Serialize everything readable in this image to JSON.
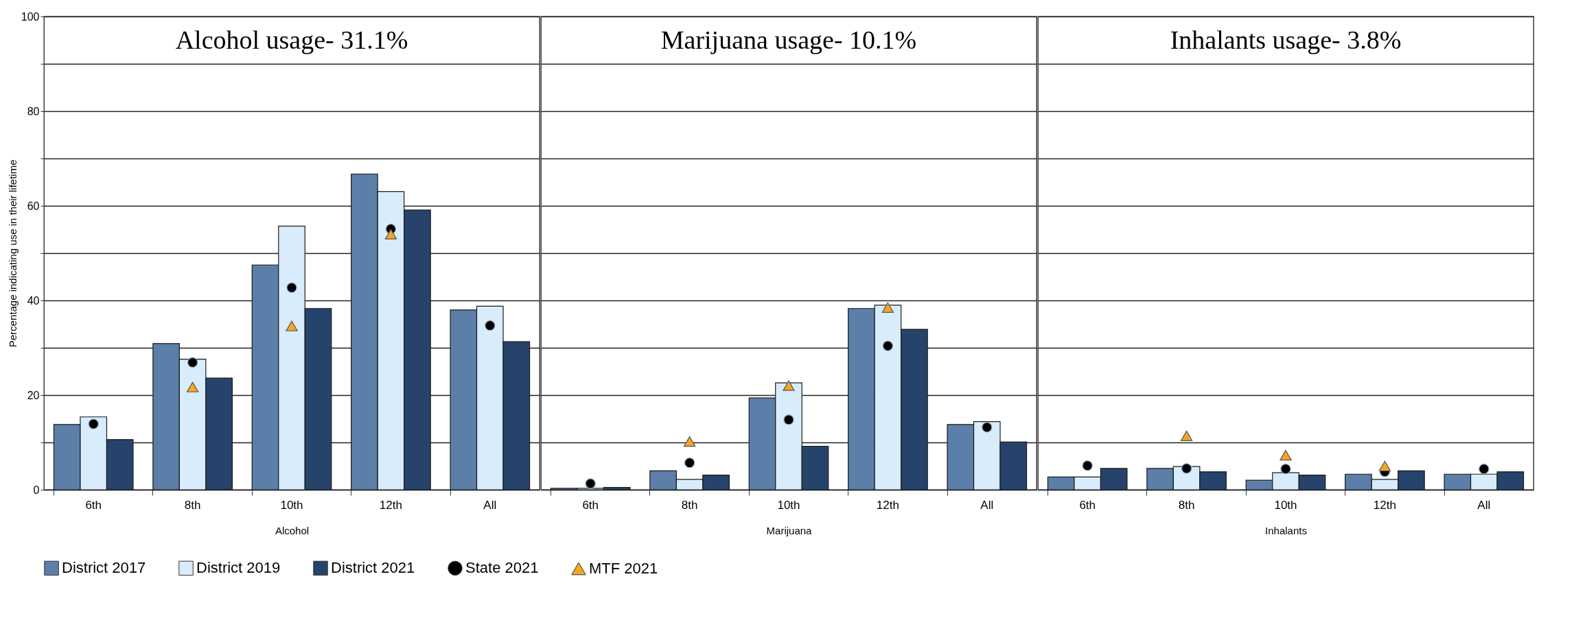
{
  "chart_data": [
    {
      "type": "bar",
      "title": "Alcohol usage- 31.1%",
      "xlabel": "Alcohol",
      "ylabel": "Percentage indicating use in their lifetime",
      "categories": [
        "6th",
        "8th",
        "10th",
        "12th",
        "All"
      ],
      "ylim": [
        0,
        100
      ],
      "yticks": [
        0,
        {
          "value": 10,
          "label": null
        },
        20,
        {
          "value": 30,
          "label": null
        },
        40,
        {
          "value": 50,
          "label": null
        },
        60,
        {
          "value": 70,
          "label": null
        },
        80,
        {
          "value": 90,
          "label": null
        },
        100
      ],
      "grid": "y",
      "legend": "bottom",
      "series": [
        {
          "name": "District 2017",
          "color": "#5b7fa8",
          "values": [
            13.8,
            30.9,
            47.5,
            66.7,
            38.0
          ]
        },
        {
          "name": "District 2019",
          "color": "#d8ecfb",
          "values": [
            15.4,
            27.6,
            55.7,
            63.0,
            38.8
          ]
        },
        {
          "name": "District 2021",
          "color": "#26436c",
          "values": [
            10.6,
            23.6,
            38.3,
            59.1,
            31.3
          ]
        },
        {
          "name": "State 2021",
          "color": "#000000",
          "type": "scatter",
          "marker": "circle",
          "values": [
            13.9,
            26.9,
            42.7,
            55.1,
            34.7
          ]
        },
        {
          "name": "MTF 2021",
          "color": "#f5a623",
          "type": "scatter",
          "marker": "triangle",
          "values": [
            null,
            21.7,
            34.6,
            54.0,
            null
          ]
        }
      ]
    },
    {
      "type": "bar",
      "title": "Marijuana usage- 10.1%",
      "xlabel": "Marijuana",
      "categories": [
        "6th",
        "8th",
        "10th",
        "12th",
        "All"
      ],
      "ylim": [
        0,
        100
      ],
      "yticks": [
        0,
        {
          "value": 10,
          "label": null
        },
        20,
        {
          "value": 30,
          "label": null
        },
        40,
        {
          "value": 50,
          "label": null
        },
        60,
        {
          "value": 70,
          "label": null
        },
        80,
        {
          "value": 90,
          "label": null
        },
        100
      ],
      "grid": "y",
      "legend": "bottom",
      "tick_labels": "x",
      "series": [
        {
          "name": "District 2017",
          "color": "#5b7fa8",
          "values": [
            0.3,
            4.0,
            19.4,
            38.3,
            13.8
          ]
        },
        {
          "name": "District 2019",
          "color": "#d8ecfb",
          "values": [
            0.3,
            2.2,
            22.6,
            39.0,
            14.4
          ]
        },
        {
          "name": "District 2021",
          "color": "#26436c",
          "values": [
            0.5,
            3.1,
            9.2,
            33.9,
            10.1
          ]
        },
        {
          "name": "State 2021",
          "color": "#000000",
          "type": "scatter",
          "marker": "circle",
          "values": [
            1.3,
            5.7,
            14.8,
            30.4,
            13.2
          ]
        },
        {
          "name": "MTF 2021",
          "color": "#f5a623",
          "type": "scatter",
          "marker": "triangle",
          "values": [
            null,
            10.2,
            22.0,
            38.5,
            null
          ]
        }
      ]
    },
    {
      "type": "bar",
      "title": "Inhalants usage- 3.8%",
      "xlabel": "Inhalants",
      "categories": [
        "6th",
        "8th",
        "10th",
        "12th",
        "All"
      ],
      "ylim": [
        0,
        100
      ],
      "yticks": [
        0,
        {
          "value": 10,
          "label": null
        },
        20,
        {
          "value": 30,
          "label": null
        },
        40,
        {
          "value": 50,
          "label": null
        },
        60,
        {
          "value": 70,
          "label": null
        },
        80,
        {
          "value": 90,
          "label": null
        },
        100
      ],
      "grid": "y",
      "legend": "bottom",
      "tick_labels": "x",
      "series": [
        {
          "name": "District 2017",
          "color": "#5b7fa8",
          "values": [
            2.7,
            4.5,
            2.0,
            3.3,
            3.3
          ]
        },
        {
          "name": "District 2019",
          "color": "#d8ecfb",
          "values": [
            2.7,
            4.9,
            3.6,
            2.2,
            3.3
          ]
        },
        {
          "name": "District 2021",
          "color": "#26436c",
          "values": [
            4.5,
            3.8,
            3.1,
            4.0,
            3.8
          ]
        },
        {
          "name": "State 2021",
          "color": "#000000",
          "type": "scatter",
          "marker": "circle",
          "values": [
            5.1,
            4.5,
            4.4,
            3.8,
            4.4
          ]
        },
        {
          "name": "MTF 2021",
          "color": "#f5a623",
          "type": "scatter",
          "marker": "triangle",
          "values": [
            null,
            11.4,
            7.3,
            5.0,
            null
          ]
        }
      ]
    }
  ]
}
